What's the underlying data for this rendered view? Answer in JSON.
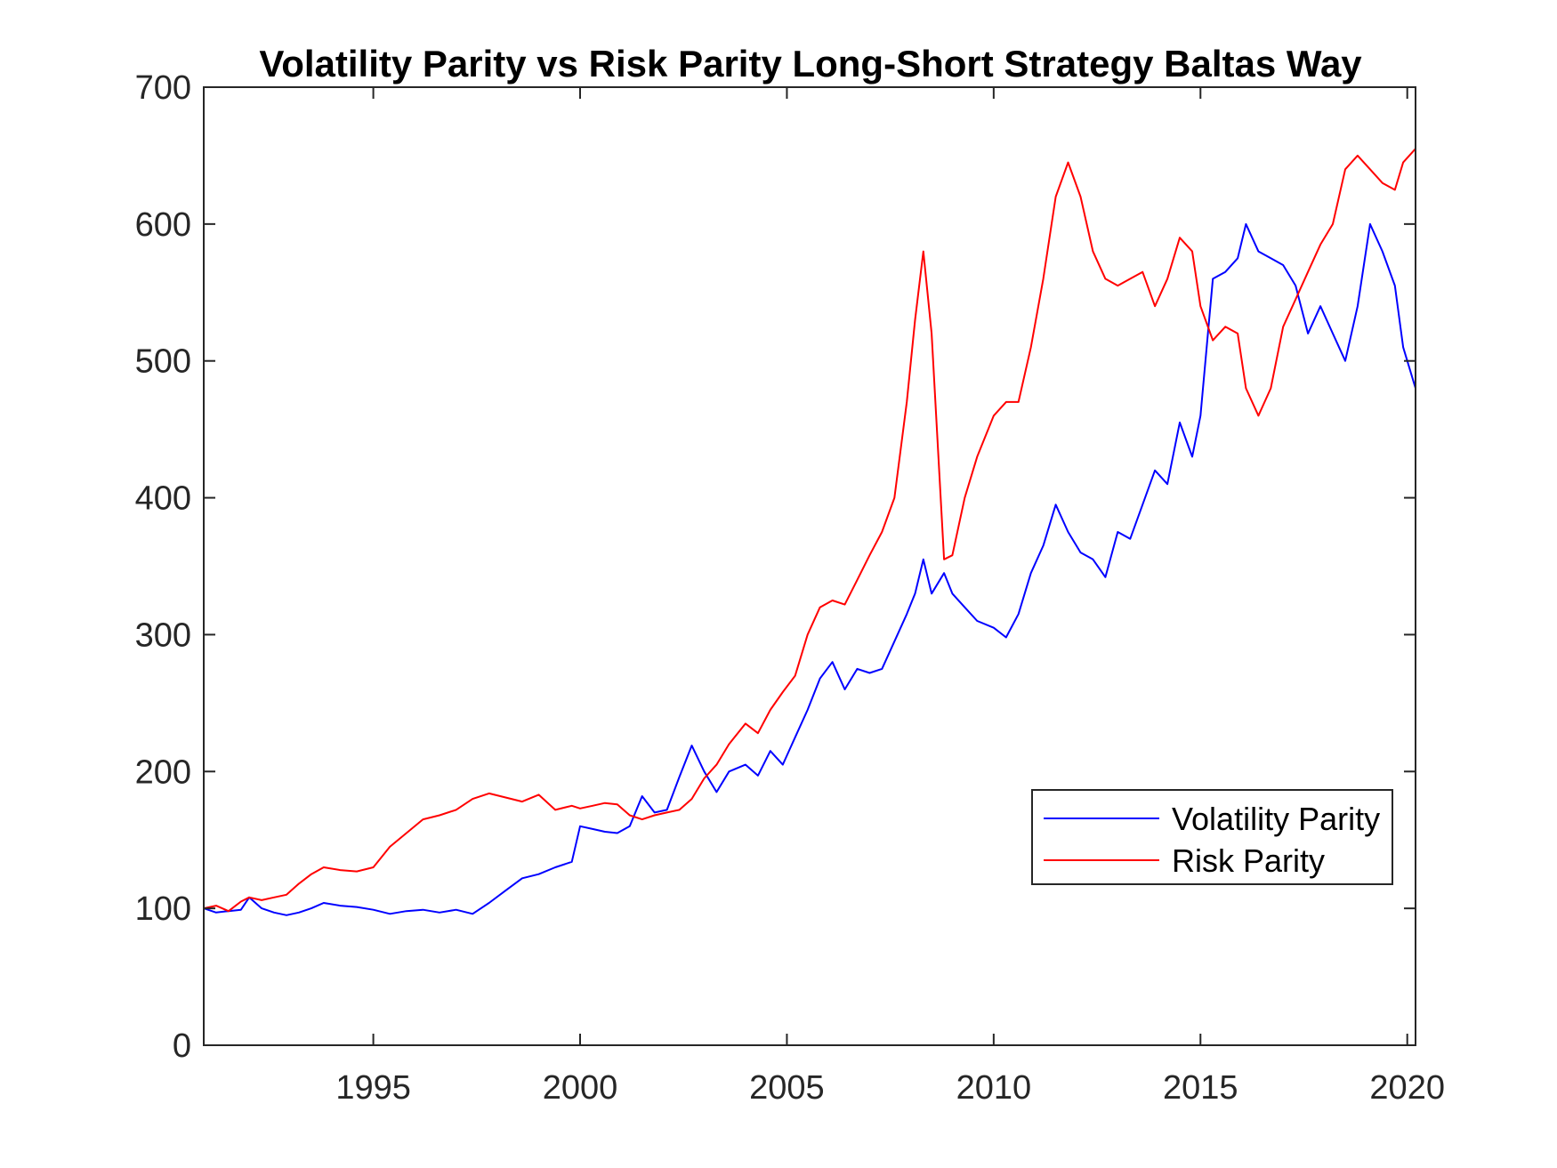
{
  "chart_data": {
    "type": "line",
    "title": "Volatility Parity vs Risk Parity Long-Short Strategy Baltas Way",
    "xlabel": "",
    "ylabel": "",
    "xlim": [
      1990.9,
      2020.2
    ],
    "ylim": [
      0,
      700
    ],
    "x_ticks": [
      1995,
      2000,
      2005,
      2010,
      2015,
      2020
    ],
    "y_ticks": [
      0,
      100,
      200,
      300,
      400,
      500,
      600,
      700
    ],
    "grid": false,
    "legend_position": "lower-right",
    "series": [
      {
        "name": "Volatility Parity",
        "color": "#0000ff",
        "x": [
          1990.9,
          1991.2,
          1991.5,
          1991.8,
          1992.0,
          1992.3,
          1992.6,
          1992.9,
          1993.2,
          1993.5,
          1993.8,
          1994.2,
          1994.6,
          1995.0,
          1995.4,
          1995.8,
          1996.2,
          1996.6,
          1997.0,
          1997.4,
          1997.8,
          1998.2,
          1998.6,
          1999.0,
          1999.4,
          1999.8,
          2000.0,
          2000.3,
          2000.6,
          2000.9,
          2001.2,
          2001.5,
          2001.8,
          2002.1,
          2002.4,
          2002.7,
          2003.0,
          2003.3,
          2003.6,
          2004.0,
          2004.3,
          2004.6,
          2004.9,
          2005.2,
          2005.5,
          2005.8,
          2006.1,
          2006.4,
          2006.7,
          2007.0,
          2007.3,
          2007.6,
          2007.9,
          2008.1,
          2008.3,
          2008.5,
          2008.8,
          2009.0,
          2009.3,
          2009.6,
          2010.0,
          2010.3,
          2010.6,
          2010.9,
          2011.2,
          2011.5,
          2011.8,
          2012.1,
          2012.4,
          2012.7,
          2013.0,
          2013.3,
          2013.6,
          2013.9,
          2014.2,
          2014.5,
          2014.8,
          2015.0,
          2015.3,
          2015.6,
          2015.9,
          2016.1,
          2016.4,
          2016.7,
          2017.0,
          2017.3,
          2017.6,
          2017.9,
          2018.2,
          2018.5,
          2018.8,
          2019.1,
          2019.4,
          2019.7,
          2019.9,
          2020.2
        ],
        "y": [
          100,
          97,
          98,
          99,
          108,
          100,
          97,
          95,
          97,
          100,
          104,
          102,
          101,
          99,
          96,
          98,
          99,
          97,
          99,
          96,
          104,
          113,
          122,
          125,
          130,
          134,
          160,
          158,
          156,
          155,
          160,
          182,
          170,
          172,
          196,
          219,
          200,
          185,
          200,
          205,
          197,
          215,
          205,
          225,
          245,
          268,
          280,
          260,
          275,
          272,
          275,
          295,
          315,
          330,
          355,
          330,
          345,
          330,
          320,
          310,
          305,
          298,
          315,
          345,
          365,
          395,
          375,
          360,
          355,
          342,
          375,
          370,
          395,
          420,
          410,
          455,
          430,
          460,
          560,
          565,
          575,
          600,
          580,
          575,
          570,
          555,
          520,
          540,
          520,
          500,
          540,
          600,
          580,
          555,
          510,
          480
        ]
      },
      {
        "name": "Risk Parity",
        "color": "#ff0000",
        "x": [
          1990.9,
          1991.2,
          1991.5,
          1991.8,
          1992.0,
          1992.3,
          1992.6,
          1992.9,
          1993.2,
          1993.5,
          1993.8,
          1994.2,
          1994.6,
          1995.0,
          1995.4,
          1995.8,
          1996.2,
          1996.6,
          1997.0,
          1997.4,
          1997.8,
          1998.2,
          1998.6,
          1999.0,
          1999.4,
          1999.8,
          2000.0,
          2000.3,
          2000.6,
          2000.9,
          2001.2,
          2001.5,
          2001.8,
          2002.1,
          2002.4,
          2002.7,
          2003.0,
          2003.3,
          2003.6,
          2004.0,
          2004.3,
          2004.6,
          2004.9,
          2005.2,
          2005.5,
          2005.8,
          2006.1,
          2006.4,
          2006.7,
          2007.0,
          2007.3,
          2007.6,
          2007.9,
          2008.1,
          2008.3,
          2008.5,
          2008.8,
          2009.0,
          2009.3,
          2009.6,
          2010.0,
          2010.3,
          2010.6,
          2010.9,
          2011.2,
          2011.5,
          2011.8,
          2012.1,
          2012.4,
          2012.7,
          2013.0,
          2013.3,
          2013.6,
          2013.9,
          2014.2,
          2014.5,
          2014.8,
          2015.0,
          2015.3,
          2015.6,
          2015.9,
          2016.1,
          2016.4,
          2016.7,
          2017.0,
          2017.3,
          2017.6,
          2017.9,
          2018.2,
          2018.5,
          2018.8,
          2019.1,
          2019.4,
          2019.7,
          2019.9,
          2020.2
        ],
        "y": [
          100,
          102,
          98,
          105,
          108,
          106,
          108,
          110,
          118,
          125,
          130,
          128,
          127,
          130,
          145,
          155,
          165,
          168,
          172,
          180,
          184,
          181,
          178,
          183,
          172,
          175,
          173,
          175,
          177,
          176,
          168,
          165,
          168,
          170,
          172,
          180,
          195,
          205,
          220,
          235,
          228,
          245,
          258,
          270,
          300,
          320,
          325,
          322,
          340,
          358,
          375,
          400,
          470,
          530,
          580,
          520,
          355,
          358,
          400,
          430,
          460,
          470,
          470,
          510,
          560,
          620,
          645,
          620,
          580,
          560,
          555,
          560,
          565,
          540,
          560,
          590,
          580,
          540,
          515,
          525,
          520,
          480,
          460,
          480,
          525,
          545,
          565,
          585,
          600,
          640,
          650,
          640,
          630,
          625,
          645,
          655
        ]
      }
    ]
  }
}
